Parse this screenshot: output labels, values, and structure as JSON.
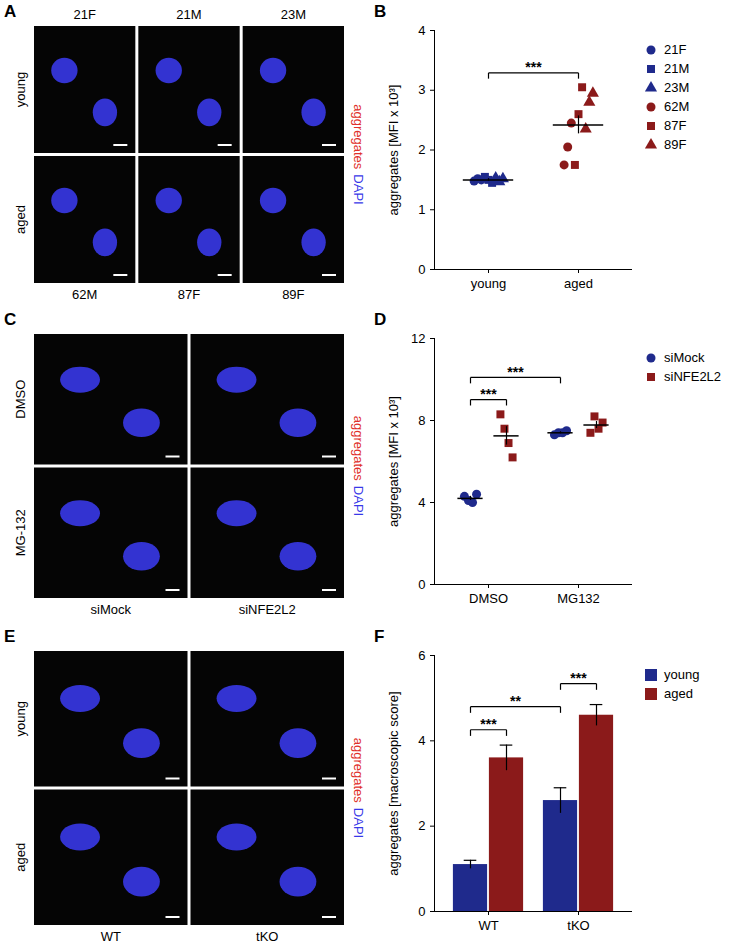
{
  "image_panels": [
    {
      "panel": "A",
      "col_labels_top": [
        "21F",
        "21M",
        "23M"
      ],
      "col_labels_bottom": [
        "62M",
        "87F",
        "89F"
      ],
      "row_labels": [
        "young",
        "aged"
      ],
      "channels": [
        {
          "name": "aggregates",
          "color": "#e0302a"
        },
        {
          "name": "DAPI",
          "color": "#3838e8"
        }
      ]
    },
    {
      "panel": "C",
      "col_labels_bottom": [
        "siMock",
        "siNFE2L2"
      ],
      "row_labels": [
        "DMSO",
        "MG-132"
      ],
      "channels": [
        {
          "name": "aggregates",
          "color": "#e0302a"
        },
        {
          "name": "DAPI",
          "color": "#3838e8"
        }
      ]
    },
    {
      "panel": "E",
      "col_labels_bottom": [
        "WT",
        "tKO"
      ],
      "row_labels": [
        "young",
        "aged"
      ],
      "channels": [
        {
          "name": "aggregates",
          "color": "#e0302a"
        },
        {
          "name": "DAPI",
          "color": "#3838e8"
        }
      ]
    }
  ],
  "chart_data": [
    {
      "panel": "B",
      "type": "scatter",
      "ylabel": "aggregates [MFI x 10³]",
      "categories": [
        "young",
        "aged"
      ],
      "series": [
        {
          "name": "21F",
          "color": "#1f2a8c",
          "marker": "circle",
          "values": [
            [
              1.48,
              1.52,
              1.5
            ],
            null
          ]
        },
        {
          "name": "21M",
          "color": "#1f2a8c",
          "marker": "square",
          "values": [
            [
              1.55,
              1.5,
              1.45
            ],
            null
          ]
        },
        {
          "name": "23M",
          "color": "#1f2a8c",
          "marker": "triangle",
          "values": [
            [
              1.53,
              1.47,
              1.52
            ],
            null
          ]
        },
        {
          "name": "62M",
          "color": "#8b1a1a",
          "marker": "circle",
          "values": [
            null,
            [
              1.75,
              2.05,
              2.45
            ]
          ]
        },
        {
          "name": "87F",
          "color": "#8b1a1a",
          "marker": "square",
          "values": [
            null,
            [
              1.75,
              2.6,
              3.05
            ]
          ]
        },
        {
          "name": "89F",
          "color": "#8b1a1a",
          "marker": "triangle",
          "values": [
            null,
            [
              2.35,
              2.8,
              2.95
            ]
          ]
        }
      ],
      "means": [
        1.5,
        2.42
      ],
      "errors": [
        0.02,
        0.15
      ],
      "ylim": [
        0,
        4
      ],
      "yticks": [
        0,
        1,
        2,
        3,
        4
      ],
      "annotations": [
        {
          "from": "young",
          "to": "aged",
          "text": "***"
        }
      ]
    },
    {
      "panel": "D",
      "type": "scatter",
      "ylabel": "aggregates [MFI x 10³]",
      "categories": [
        "DMSO",
        "MG132"
      ],
      "series": [
        {
          "name": "siMock",
          "color": "#1f2a8c",
          "marker": "circle",
          "values": [
            [
              4.3,
              4.1,
              4.0,
              4.4
            ],
            [
              7.3,
              7.4,
              7.4,
              7.5
            ]
          ],
          "means": [
            4.2,
            7.4
          ],
          "errors": [
            0.1,
            0.05
          ]
        },
        {
          "name": "siNFE2L2",
          "color": "#8b1a1a",
          "marker": "square",
          "values": [
            [
              8.3,
              7.6,
              6.9,
              6.2
            ],
            [
              7.4,
              8.2,
              7.6,
              7.9
            ]
          ],
          "means": [
            7.25,
            7.78
          ],
          "errors": [
            0.45,
            0.17
          ]
        }
      ],
      "ylim": [
        0,
        12
      ],
      "yticks": [
        0,
        4,
        8,
        12
      ],
      "annotations": [
        {
          "from": [
            "DMSO",
            "siMock"
          ],
          "to": [
            "DMSO",
            "siNFE2L2"
          ],
          "text": "***"
        },
        {
          "from": [
            "DMSO",
            "siMock"
          ],
          "to": [
            "MG132",
            "siMock"
          ],
          "text": "***"
        }
      ]
    },
    {
      "panel": "F",
      "type": "bar",
      "ylabel": "aggregates [macroscopic score]",
      "categories": [
        "WT",
        "tKO"
      ],
      "series": [
        {
          "name": "young",
          "color": "#1f2a8c",
          "values": [
            1.1,
            2.6
          ],
          "errors": [
            0.1,
            0.3
          ]
        },
        {
          "name": "aged",
          "color": "#8b1a1a",
          "values": [
            3.6,
            4.6
          ],
          "errors": [
            0.3,
            0.25
          ]
        }
      ],
      "ylim": [
        0,
        6
      ],
      "yticks": [
        0,
        2,
        4,
        6
      ],
      "annotations": [
        {
          "from": [
            "WT",
            "young"
          ],
          "to": [
            "WT",
            "aged"
          ],
          "text": "***"
        },
        {
          "from": [
            "WT",
            "young"
          ],
          "to": [
            "tKO",
            "young"
          ],
          "text": "**"
        },
        {
          "from": [
            "tKO",
            "young"
          ],
          "to": [
            "tKO",
            "aged"
          ],
          "text": "***"
        }
      ]
    }
  ]
}
